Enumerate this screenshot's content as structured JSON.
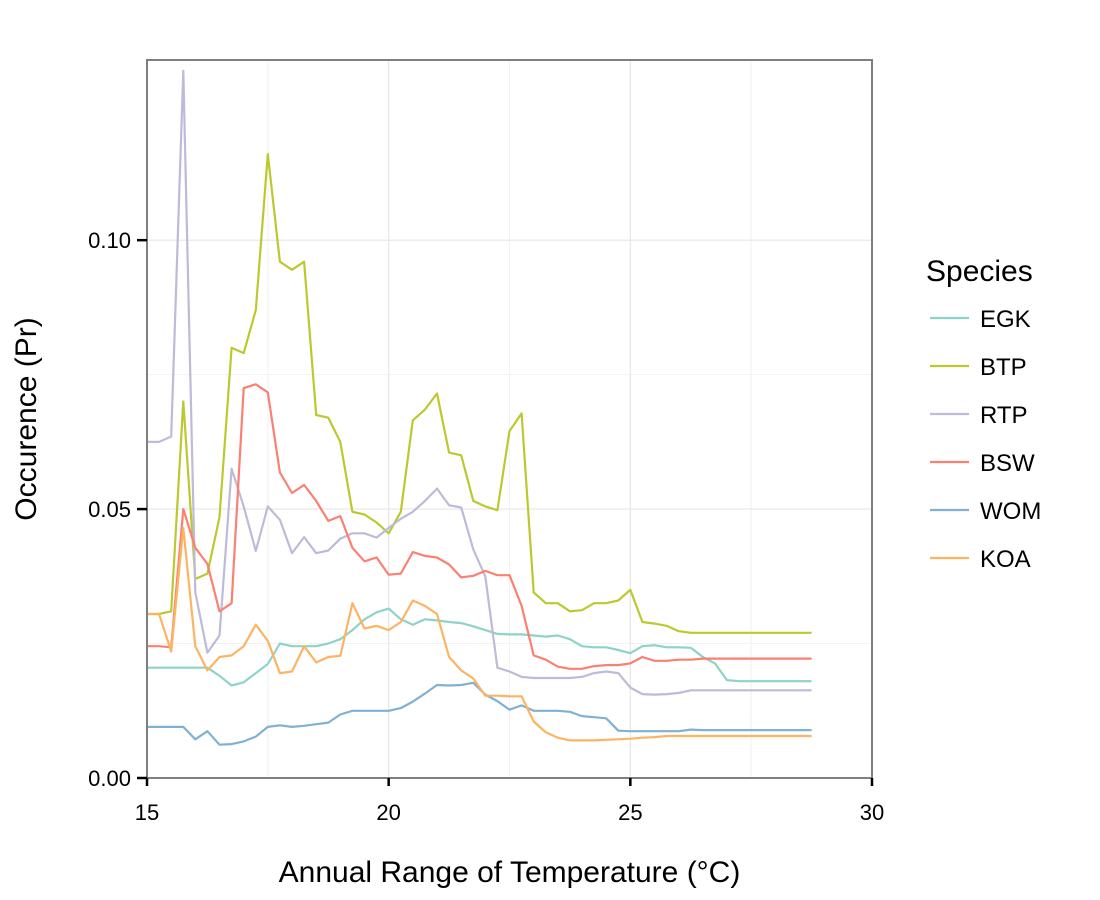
{
  "chart_data": {
    "type": "line",
    "xlabel": "Annual Range of Temperature (°C)",
    "ylabel": "Occurence (Pr)",
    "xlim": [
      15,
      30
    ],
    "ylim": [
      0,
      0.1335
    ],
    "x_ticks": [
      15,
      20,
      25,
      30
    ],
    "x_tick_labels": [
      "15",
      "20",
      "25",
      "30"
    ],
    "y_ticks": [
      0.0,
      0.05,
      0.1
    ],
    "y_tick_labels": [
      "0.00",
      "0.05",
      "0.10"
    ],
    "grid": true,
    "legend": {
      "title": "Species",
      "position": "right"
    },
    "x": [
      15.0,
      15.25,
      15.5,
      15.75,
      16.0,
      16.25,
      16.5,
      16.75,
      17.0,
      17.25,
      17.5,
      17.75,
      18.0,
      18.25,
      18.5,
      18.75,
      19.0,
      19.25,
      19.5,
      19.75,
      20.0,
      20.25,
      20.5,
      20.75,
      21.0,
      21.25,
      21.5,
      21.75,
      22.0,
      22.25,
      22.5,
      22.75,
      23.0,
      23.25,
      23.5,
      23.75,
      24.0,
      24.25,
      24.5,
      24.75,
      25.0,
      25.25,
      25.5,
      25.75,
      26.0,
      26.25,
      26.5,
      26.75,
      27.0,
      27.25,
      27.5,
      27.75,
      28.0,
      28.25,
      28.5,
      28.75
    ],
    "series": [
      {
        "name": "EGK",
        "color": "#8dd3c7",
        "values": [
          0.0205,
          0.0205,
          0.0205,
          0.0205,
          0.0205,
          0.0205,
          0.019,
          0.0172,
          0.0178,
          0.0195,
          0.0212,
          0.025,
          0.0245,
          0.0245,
          0.0245,
          0.025,
          0.0258,
          0.0275,
          0.0295,
          0.0308,
          0.0315,
          0.0295,
          0.0285,
          0.0295,
          0.0293,
          0.029,
          0.0288,
          0.0282,
          0.0275,
          0.0268,
          0.0267,
          0.0267,
          0.0265,
          0.0263,
          0.0265,
          0.0258,
          0.0245,
          0.0243,
          0.0243,
          0.0238,
          0.0232,
          0.0245,
          0.0247,
          0.0243,
          0.0243,
          0.0242,
          0.0225,
          0.0213,
          0.0182,
          0.018,
          0.018,
          0.018,
          0.018,
          0.018,
          0.018,
          0.018
        ]
      },
      {
        "name": "BTP",
        "color": "#bcc92e",
        "values": [
          0.0305,
          0.0305,
          0.031,
          0.07,
          0.037,
          0.038,
          0.0485,
          0.08,
          0.079,
          0.087,
          0.116,
          0.096,
          0.0945,
          0.096,
          0.0675,
          0.067,
          0.0625,
          0.0495,
          0.049,
          0.0475,
          0.0455,
          0.0495,
          0.0665,
          0.0685,
          0.0715,
          0.0605,
          0.06,
          0.0515,
          0.0505,
          0.0498,
          0.0645,
          0.0678,
          0.0345,
          0.0325,
          0.0325,
          0.031,
          0.0312,
          0.0325,
          0.0325,
          0.033,
          0.035,
          0.029,
          0.0287,
          0.0283,
          0.0273,
          0.027,
          0.027,
          0.027,
          0.027,
          0.027,
          0.027,
          0.027,
          0.027,
          0.027,
          0.027,
          0.027
        ]
      },
      {
        "name": "RTP",
        "color": "#bebada",
        "values": [
          0.0625,
          0.0625,
          0.0635,
          0.1315,
          0.0345,
          0.0233,
          0.0265,
          0.0575,
          0.0505,
          0.0422,
          0.0505,
          0.048,
          0.0418,
          0.0448,
          0.0418,
          0.0423,
          0.0445,
          0.0455,
          0.0455,
          0.0447,
          0.0465,
          0.0482,
          0.0495,
          0.0515,
          0.0538,
          0.0507,
          0.0503,
          0.0425,
          0.0375,
          0.0205,
          0.0198,
          0.0188,
          0.0186,
          0.0186,
          0.0186,
          0.0186,
          0.0188,
          0.0195,
          0.0198,
          0.0195,
          0.0168,
          0.0156,
          0.0155,
          0.0156,
          0.0158,
          0.0163,
          0.0163,
          0.0163,
          0.0163,
          0.0163,
          0.0163,
          0.0163,
          0.0163,
          0.0163,
          0.0163,
          0.0163
        ]
      },
      {
        "name": "BSW",
        "color": "#fb8072",
        "values": [
          0.0245,
          0.0245,
          0.0243,
          0.05,
          0.0428,
          0.0398,
          0.031,
          0.0325,
          0.0725,
          0.0732,
          0.0717,
          0.0568,
          0.053,
          0.0545,
          0.0515,
          0.0478,
          0.0487,
          0.0428,
          0.0403,
          0.041,
          0.0378,
          0.038,
          0.042,
          0.0413,
          0.041,
          0.0397,
          0.0373,
          0.0376,
          0.0385,
          0.0377,
          0.0377,
          0.032,
          0.0228,
          0.022,
          0.0207,
          0.0203,
          0.0203,
          0.0208,
          0.021,
          0.021,
          0.0213,
          0.0225,
          0.0218,
          0.0218,
          0.022,
          0.022,
          0.0222,
          0.0222,
          0.0222,
          0.0222,
          0.0222,
          0.0222,
          0.0222,
          0.0222,
          0.0222,
          0.0222
        ]
      },
      {
        "name": "WOM",
        "color": "#80b1d3",
        "values": [
          0.0095,
          0.0095,
          0.0095,
          0.0095,
          0.0072,
          0.0087,
          0.0062,
          0.0063,
          0.0068,
          0.0077,
          0.0095,
          0.0098,
          0.0095,
          0.0097,
          0.01,
          0.0103,
          0.0118,
          0.0125,
          0.0125,
          0.0125,
          0.0125,
          0.013,
          0.0142,
          0.0157,
          0.0173,
          0.0172,
          0.0173,
          0.0177,
          0.0155,
          0.0143,
          0.0127,
          0.0135,
          0.0125,
          0.0125,
          0.0125,
          0.0123,
          0.0115,
          0.0113,
          0.0111,
          0.0088,
          0.0087,
          0.0087,
          0.0087,
          0.0087,
          0.0087,
          0.009,
          0.0089,
          0.0089,
          0.0089,
          0.0089,
          0.0089,
          0.0089,
          0.0089,
          0.0089,
          0.0089,
          0.0089
        ]
      },
      {
        "name": "KOA",
        "color": "#fdb462",
        "values": [
          0.0305,
          0.0305,
          0.0235,
          0.0465,
          0.0245,
          0.02,
          0.0225,
          0.0228,
          0.0245,
          0.0285,
          0.0255,
          0.0195,
          0.0198,
          0.0245,
          0.0215,
          0.0225,
          0.0227,
          0.0325,
          0.0278,
          0.0283,
          0.0275,
          0.029,
          0.033,
          0.032,
          0.0305,
          0.0225,
          0.02,
          0.0185,
          0.0153,
          0.0153,
          0.0152,
          0.0152,
          0.0105,
          0.0085,
          0.0075,
          0.007,
          0.007,
          0.007,
          0.0071,
          0.0072,
          0.0073,
          0.0075,
          0.0076,
          0.0078,
          0.0078,
          0.0078,
          0.0078,
          0.0078,
          0.0078,
          0.0078,
          0.0078,
          0.0078,
          0.0078,
          0.0078,
          0.0078,
          0.0078
        ]
      }
    ]
  }
}
